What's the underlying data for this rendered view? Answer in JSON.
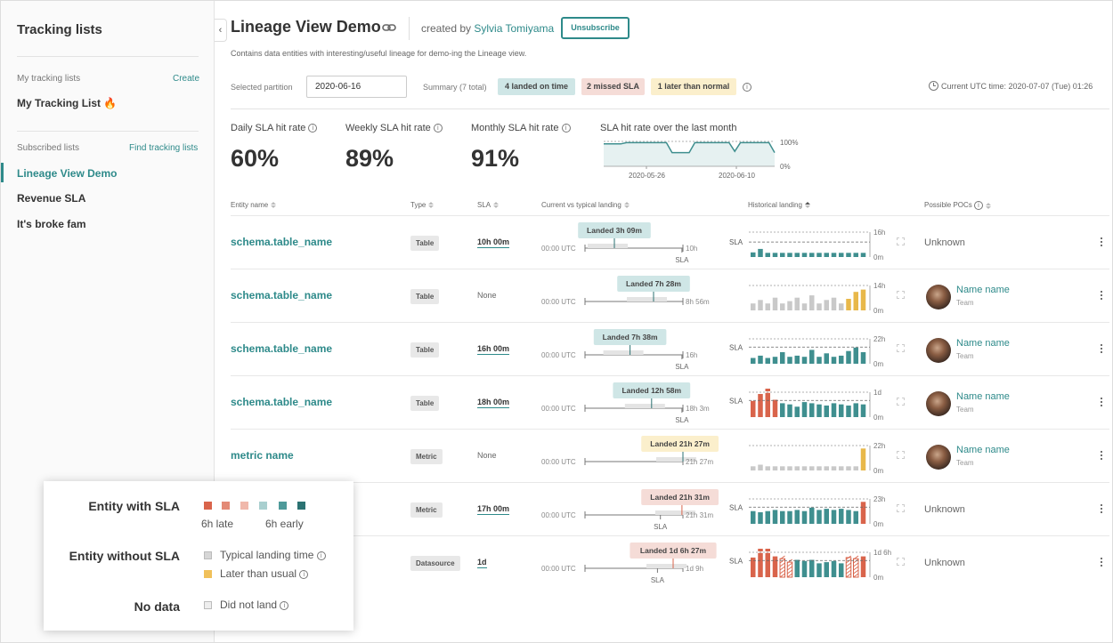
{
  "sidebar": {
    "title": "Tracking lists",
    "my_lists_label": "My tracking lists",
    "create_label": "Create",
    "my_list_item": "My Tracking List 🔥",
    "subscribed_label": "Subscribed lists",
    "find_label": "Find tracking lists",
    "subscribed_items": [
      "Lineage View Demo",
      "Revenue SLA",
      "It's broke fam"
    ],
    "collapse_icon": "‹"
  },
  "header": {
    "title": "Lineage View Demo",
    "created_prefix": "created by ",
    "creator": "Sylvia Tomiyama",
    "unsubscribe_label": "Unsubscribe",
    "description": "Contains data entities with interesting/useful lineage for demo-ing the Lineage view."
  },
  "filters": {
    "partition_label": "Selected partition",
    "partition_value": "2020-06-16",
    "summary_label": "Summary (7 total)",
    "pills": [
      "4 landed on time",
      "2 missed SLA",
      "1 later than normal"
    ],
    "utc_text": "Current UTC time: 2020-07-07 (Tue) 01:26"
  },
  "stats": {
    "daily_label": "Daily SLA hit rate",
    "daily_value": "60%",
    "weekly_label": "Weekly SLA hit rate",
    "weekly_value": "89%",
    "monthly_label": "Monthly SLA hit rate",
    "monthly_value": "91%",
    "spark_title": "SLA hit rate over the last month",
    "spark_top": "100%",
    "spark_bottom": "0%",
    "spark_dates": [
      "2020-05-26",
      "2020-06-10"
    ],
    "spark_values": [
      0.9,
      0.9,
      0.9,
      0.9,
      0.95,
      0.95,
      0.95,
      0.95,
      0.95,
      0.95,
      0.95,
      0.95,
      0.55,
      0.55,
      0.55,
      0.55,
      0.95,
      0.95,
      0.95,
      0.95,
      0.95,
      0.95,
      0.95,
      0.6,
      0.95,
      0.95,
      0.95,
      0.95,
      0.95,
      0.95,
      0.55
    ]
  },
  "table": {
    "headers": [
      "Entity name",
      "Type",
      "SLA",
      "Current vs typical landing",
      "Historical landing",
      "Possible POCs"
    ],
    "zero_utc": "00:00 UTC",
    "sla_tag": "SLA",
    "hist_zero": "0m",
    "unknown_label": "Unknown",
    "rows": [
      {
        "name": "schema.table_name",
        "type": "Table",
        "sla": "10h 00m",
        "landed": "Landed 3h 09m",
        "end_label": "10h",
        "hist_top": "16h",
        "has_sla": true,
        "poc": null,
        "badge_color": "#cfe6e6",
        "land_frac": 0.3,
        "sla_frac": 0.99,
        "bars": [
          0.2,
          0.35,
          0.18,
          0.18,
          0.18,
          0.18,
          0.18,
          0.18,
          0.18,
          0.18,
          0.18,
          0.18,
          0.18,
          0.18,
          0.18,
          0.18
        ],
        "bar_colors": [
          "t",
          "t",
          "t",
          "t",
          "t",
          "t",
          "t",
          "t",
          "t",
          "t",
          "t",
          "t",
          "t",
          "t",
          "t",
          "t"
        ],
        "hist_sla": 0.65
      },
      {
        "name": "schema.table_name",
        "type": "Table",
        "sla": "None",
        "landed": "Landed 7h 28m",
        "end_label": "8h 56m",
        "hist_top": "14h",
        "has_sla": false,
        "poc": {
          "name": "Name name",
          "team": "Team"
        },
        "badge_color": "#cfe6e6",
        "land_frac": 0.7,
        "sla_frac": null,
        "bars": [
          0.3,
          0.45,
          0.3,
          0.55,
          0.3,
          0.4,
          0.55,
          0.3,
          0.65,
          0.3,
          0.45,
          0.55,
          0.3,
          0.5,
          0.8,
          0.9
        ],
        "bar_colors": [
          "g",
          "g",
          "g",
          "g",
          "g",
          "g",
          "g",
          "g",
          "g",
          "g",
          "g",
          "g",
          "g",
          "y",
          "y",
          "y"
        ],
        "hist_sla": null
      },
      {
        "name": "schema.table_name",
        "type": "Table",
        "sla": "16h 00m",
        "landed": "Landed 7h 38m",
        "end_label": "16h",
        "hist_top": "22h",
        "has_sla": true,
        "poc": {
          "name": "Name name",
          "team": "Team"
        },
        "badge_color": "#cfe6e6",
        "land_frac": 0.46,
        "sla_frac": 0.99,
        "bars": [
          0.25,
          0.35,
          0.25,
          0.3,
          0.5,
          0.3,
          0.35,
          0.3,
          0.6,
          0.3,
          0.45,
          0.3,
          0.35,
          0.55,
          0.7,
          0.5
        ],
        "bar_colors": [
          "t",
          "t",
          "t",
          "t",
          "t",
          "t",
          "t",
          "t",
          "t",
          "t",
          "t",
          "t",
          "t",
          "t",
          "t",
          "t"
        ],
        "hist_sla": 0.72
      },
      {
        "name": "schema.table_name",
        "type": "Table",
        "sla": "18h 00m",
        "landed": "Landed 12h 58m",
        "end_label": "18h 3m",
        "hist_top": "1d",
        "has_sla": true,
        "poc": {
          "name": "Name name",
          "team": "Team"
        },
        "badge_color": "#cfe6e6",
        "land_frac": 0.68,
        "sla_frac": 0.99,
        "bars": [
          0.7,
          1.0,
          1.05,
          0.75,
          0.6,
          0.55,
          0.45,
          0.65,
          0.6,
          0.55,
          0.5,
          0.6,
          0.55,
          0.5,
          0.6,
          0.55
        ],
        "bar_colors": [
          "r",
          "r",
          "r",
          "r",
          "t",
          "t",
          "t",
          "t",
          "t",
          "t",
          "t",
          "t",
          "t",
          "t",
          "t",
          "t"
        ],
        "hist_sla": 0.72
      },
      {
        "name": "metric name",
        "type": "Metric",
        "sla": "None",
        "landed": "Landed 21h 27m",
        "end_label": "21h 27m",
        "hist_top": "22h",
        "has_sla": false,
        "poc": {
          "name": "Name name",
          "team": "Team"
        },
        "badge_color": "#fbefcc",
        "land_frac": 1.0,
        "sla_frac": null,
        "bars": [
          0.18,
          0.25,
          0.18,
          0.18,
          0.18,
          0.18,
          0.18,
          0.18,
          0.18,
          0.18,
          0.18,
          0.18,
          0.18,
          0.18,
          0.18,
          0.95
        ],
        "bar_colors": [
          "g",
          "g",
          "g",
          "g",
          "g",
          "g",
          "g",
          "g",
          "g",
          "g",
          "g",
          "g",
          "g",
          "g",
          "g",
          "y"
        ],
        "hist_sla": null
      },
      {
        "name": "",
        "type": "Metric",
        "sla": "17h 00m",
        "landed": "Landed 21h 31m",
        "end_label": "21h 31m",
        "hist_top": "23h",
        "has_sla": true,
        "poc": null,
        "badge_color": "#f5dcd7",
        "land_frac": 0.99,
        "sla_frac": 0.77,
        "bars": [
          0.55,
          0.5,
          0.55,
          0.6,
          0.55,
          0.55,
          0.6,
          0.55,
          0.7,
          0.6,
          0.65,
          0.6,
          0.65,
          0.6,
          0.55,
          0.95
        ],
        "bar_colors": [
          "t",
          "t",
          "t",
          "t",
          "t",
          "t",
          "t",
          "t",
          "t",
          "t",
          "t",
          "t",
          "t",
          "t",
          "t",
          "r"
        ],
        "hist_sla": 0.72
      },
      {
        "name": "",
        "type": "Datasource",
        "sla": "1d",
        "landed": "Landed 1d 6h 27m",
        "end_label": "1d 9h",
        "hist_top": "1d 6h",
        "has_sla": true,
        "poc": null,
        "badge_color": "#f5dcd7",
        "land_frac": 0.9,
        "sla_frac": 0.74,
        "bars": [
          0.85,
          1.05,
          1.05,
          0.9,
          0.8,
          0.65,
          0.75,
          0.7,
          0.75,
          0.6,
          0.65,
          0.7,
          0.6,
          0.85,
          0.8,
          0.9
        ],
        "bar_colors": [
          "r",
          "r",
          "r",
          "r",
          "h",
          "h",
          "t",
          "t",
          "t",
          "t",
          "t",
          "t",
          "t",
          "h",
          "h",
          "r"
        ],
        "hist_sla": 0.72
      }
    ]
  },
  "legend": {
    "with_sla": "Entity with SLA",
    "late": "6h late",
    "early": "6h early",
    "without_sla": "Entity without SLA",
    "typical": "Typical landing time",
    "later": "Later than usual",
    "no_data": "No data",
    "did_not_land": "Did not land",
    "sla_colors": [
      "#d9644b",
      "#e38a76",
      "#f0b8ab",
      "#a9cfcf",
      "#4e9a9a",
      "#2b7272"
    ],
    "typical_color": "#d6d6d6",
    "later_color": "#f0c05a",
    "nodata_color": "#eeeeee"
  },
  "colors": {
    "accent": "#2e8a8a",
    "teal_bar": "#3f8f8f",
    "red_bar": "#d9644b",
    "gray_bar": "#c9c9c9",
    "yellow_bar": "#e8b84a"
  }
}
